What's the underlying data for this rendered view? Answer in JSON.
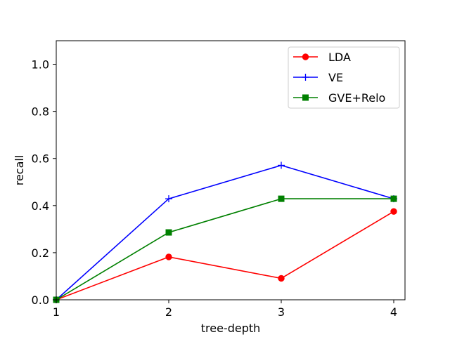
{
  "chart_data": {
    "type": "line",
    "title": "",
    "xlabel": "tree-depth",
    "ylabel": "recall",
    "x": [
      1,
      2,
      3,
      4
    ],
    "xlim": [
      1,
      4.1
    ],
    "ylim": [
      0,
      1.1
    ],
    "xticks": [
      "1",
      "2",
      "3",
      "4"
    ],
    "yticks": [
      "0.0",
      "0.2",
      "0.4",
      "0.6",
      "0.8",
      "1.0"
    ],
    "grid": false,
    "legend_position": "top-right",
    "series": [
      {
        "name": "LDA",
        "values": [
          0.0,
          0.182,
          0.091,
          0.375
        ],
        "color": "#ff0000",
        "marker": "circle"
      },
      {
        "name": "VE",
        "values": [
          0.0,
          0.429,
          0.571,
          0.429
        ],
        "color": "#0000ff",
        "marker": "plus"
      },
      {
        "name": "GVE+Relo",
        "values": [
          0.0,
          0.286,
          0.429,
          0.429
        ],
        "color": "#008000",
        "marker": "square"
      }
    ]
  }
}
